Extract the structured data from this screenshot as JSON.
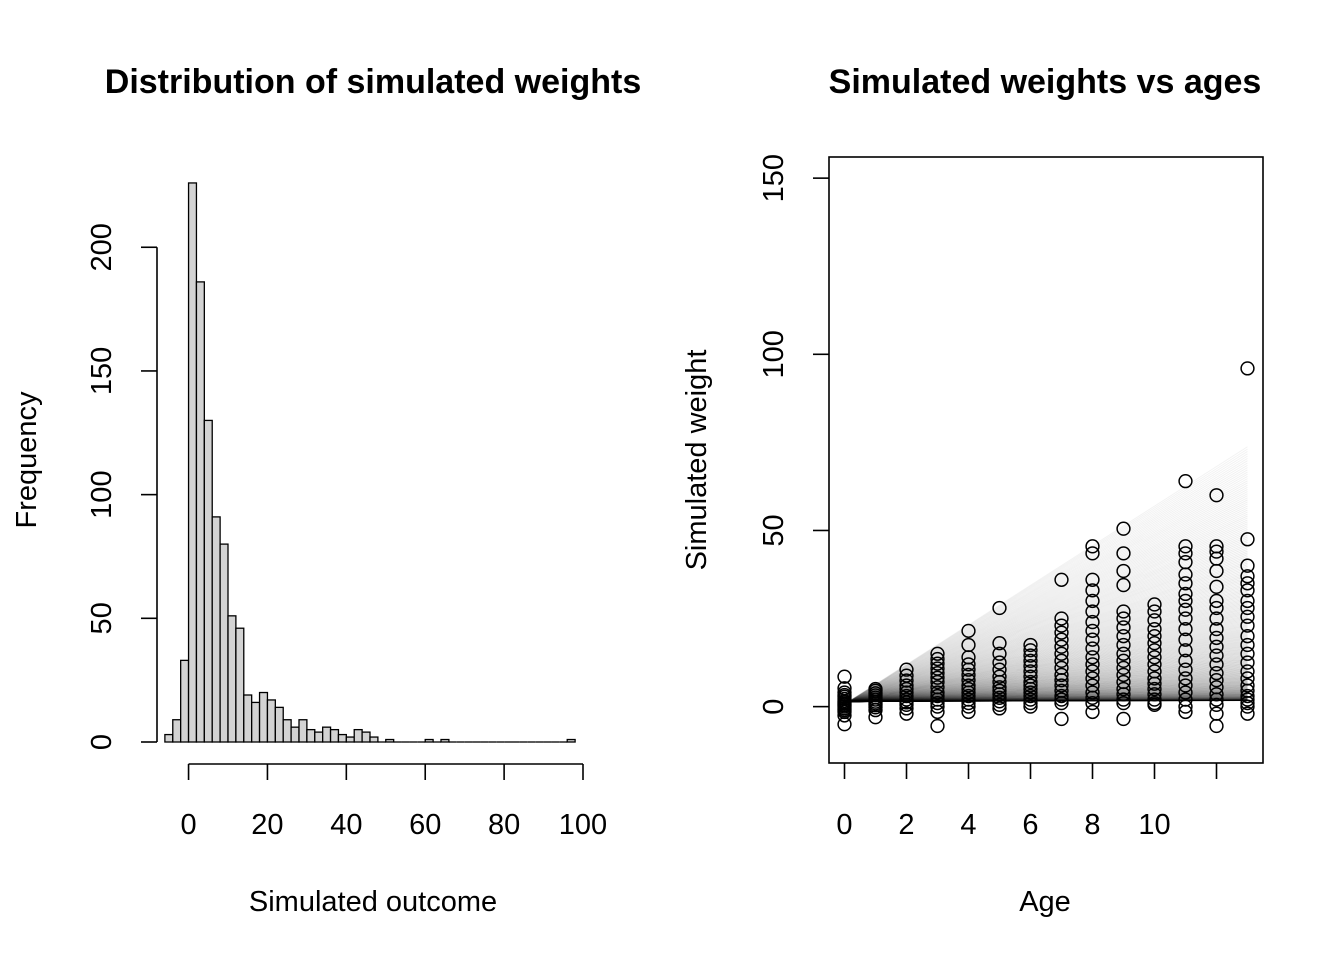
{
  "chart_data": [
    {
      "type": "bar",
      "title": "Distribution of simulated weights",
      "xlabel": "Simulated outcome",
      "ylabel": "Frequency",
      "xlim": [
        -8,
        100
      ],
      "ylim": [
        0,
        228
      ],
      "x_ticks": [
        0,
        20,
        40,
        60,
        80,
        100
      ],
      "y_ticks": [
        0,
        50,
        100,
        150,
        200
      ],
      "bin_width": 2,
      "bin_starts": [
        -6,
        -4,
        -2,
        0,
        2,
        4,
        6,
        8,
        10,
        12,
        14,
        16,
        18,
        20,
        22,
        24,
        26,
        28,
        30,
        32,
        34,
        36,
        38,
        40,
        42,
        44,
        46,
        48,
        50,
        52,
        54,
        56,
        58,
        60,
        62,
        64,
        66,
        68,
        70,
        72,
        74,
        76,
        78,
        80,
        82,
        84,
        86,
        88,
        90,
        92,
        94,
        96
      ],
      "values": [
        3,
        9,
        33,
        226,
        186,
        130,
        91,
        80,
        51,
        46,
        19,
        16,
        20,
        17,
        14,
        9,
        6,
        9,
        5,
        4,
        6,
        5,
        3,
        2,
        5,
        4,
        2,
        0,
        1,
        0,
        0,
        0,
        0,
        1,
        0,
        1,
        0,
        0,
        0,
        0,
        0,
        0,
        0,
        0,
        0,
        0,
        0,
        0,
        0,
        0,
        0,
        1
      ],
      "grid": false,
      "bar_color": "#d3d3d3"
    },
    {
      "type": "scatter",
      "title": "Simulated weights vs ages",
      "xlabel": "Age",
      "ylabel": "Simulated weight",
      "xlim": [
        -0.5,
        13.5
      ],
      "ylim": [
        -16,
        156
      ],
      "x_ticks": [
        0,
        2,
        4,
        6,
        8,
        10,
        12
      ],
      "x_tick_labels": [
        "0",
        "2",
        "4",
        "6",
        "8",
        "10",
        ""
      ],
      "y_ticks": [
        0,
        50,
        100,
        150
      ],
      "grid": false,
      "series": [
        {
          "x": [
            0,
            0,
            0,
            0,
            0,
            0,
            0,
            0,
            0,
            0,
            0,
            0,
            0,
            0,
            0,
            0,
            1,
            1,
            1,
            1,
            1,
            1,
            1,
            1,
            1,
            1,
            1,
            1,
            2,
            2,
            2,
            2,
            2,
            2,
            2,
            2,
            2,
            2,
            2,
            2,
            3,
            3,
            3,
            3,
            3,
            3,
            3,
            3,
            3,
            3,
            3,
            3,
            3,
            3,
            3,
            4,
            4,
            4,
            4,
            4,
            4,
            4,
            4,
            4,
            4,
            4,
            4,
            4,
            4,
            4,
            5,
            5,
            5,
            5,
            5,
            5,
            5,
            5,
            5,
            5,
            5,
            5,
            5,
            5,
            6,
            6,
            6,
            6,
            6,
            6,
            6,
            6,
            6,
            6,
            6,
            6,
            6,
            6,
            6,
            7,
            7,
            7,
            7,
            7,
            7,
            7,
            7,
            7,
            7,
            7,
            7,
            7,
            7,
            7,
            7,
            7,
            8,
            8,
            8,
            8,
            8,
            8,
            8,
            8,
            8,
            8,
            8,
            8,
            8,
            8,
            8,
            8,
            8,
            8,
            8,
            9,
            9,
            9,
            9,
            9,
            9,
            9,
            9,
            9,
            9,
            9,
            9,
            9,
            9,
            9,
            9,
            9,
            9,
            9,
            10,
            10,
            10,
            10,
            10,
            10,
            10,
            10,
            10,
            10,
            10,
            10,
            10,
            10,
            10,
            10,
            10,
            11,
            11,
            11,
            11,
            11,
            11,
            11,
            11,
            11,
            11,
            11,
            11,
            11,
            11,
            11,
            11,
            11,
            11,
            11,
            11,
            11,
            12,
            12,
            12,
            12,
            12,
            12,
            12,
            12,
            12,
            12,
            12,
            12,
            12,
            12,
            12,
            12,
            12,
            12,
            12,
            12,
            12,
            12,
            13,
            13,
            13,
            13,
            13,
            13,
            13,
            13,
            13,
            13,
            13,
            13,
            13,
            13,
            13,
            13,
            13,
            13,
            13,
            13,
            13,
            13,
            13
          ],
          "y": [
            8.5,
            5.2,
            4,
            3.3,
            2.8,
            2.2,
            1.6,
            1.2,
            0.8,
            0.4,
            0,
            -0.5,
            -1,
            -1.5,
            -2.5,
            -5,
            5,
            4.5,
            3.8,
            3.2,
            2.6,
            2,
            1.4,
            0.9,
            0.4,
            -0.2,
            -1,
            -3,
            10.5,
            8.8,
            7.4,
            6,
            5,
            4,
            3,
            2,
            1.2,
            0.5,
            -0.5,
            -2,
            15,
            13.5,
            12.2,
            10.8,
            9.5,
            8.2,
            7,
            5.5,
            4,
            3,
            2,
            1,
            0,
            -1.5,
            -5.5,
            21.5,
            17.5,
            14,
            12,
            10.5,
            9,
            7.5,
            6,
            5,
            4,
            3,
            2,
            1,
            0,
            -1.5,
            28,
            18,
            15,
            12.5,
            10.5,
            8.5,
            7,
            5.5,
            4.5,
            3.5,
            2.5,
            1.5,
            0.5,
            -0.5,
            17.5,
            16,
            14.5,
            13,
            11.5,
            10,
            8.5,
            7,
            6,
            5,
            4,
            3,
            2,
            1,
            0,
            36,
            25,
            23,
            21,
            19,
            17,
            15,
            13,
            11,
            9,
            7.5,
            6,
            4.5,
            3,
            2,
            1,
            -3.5,
            45.5,
            43.5,
            36,
            33,
            30,
            27,
            24,
            21.5,
            19,
            16.5,
            14,
            12,
            10,
            8,
            6,
            4,
            2.5,
            1,
            -1.5,
            50.5,
            43.5,
            38.5,
            34.5,
            27,
            25,
            22.5,
            20,
            17.5,
            15,
            13,
            11,
            9,
            7,
            5,
            3.5,
            2,
            1,
            -3.5,
            29,
            27,
            24.5,
            22,
            20,
            18,
            16,
            14,
            12,
            10,
            8,
            6.5,
            5,
            3.5,
            2,
            1,
            0.5,
            64,
            45.5,
            43.5,
            41,
            37.5,
            35,
            32,
            30,
            27.5,
            25,
            22,
            19,
            16,
            13,
            10.5,
            8,
            6,
            4,
            2,
            0,
            -1.5,
            60,
            45.5,
            44,
            42,
            38.5,
            34,
            30,
            28,
            25,
            22,
            19.5,
            17,
            14.5,
            12,
            9.5,
            7.5,
            5.5,
            3.5,
            2,
            0.5,
            -2,
            -5.5,
            96,
            47.5,
            40,
            37,
            35,
            33,
            30,
            28,
            25.5,
            23,
            20,
            17.5,
            15,
            12.5,
            10,
            8,
            6,
            4.5,
            3,
            2,
            1,
            0,
            -2
          ]
        }
      ]
    }
  ]
}
